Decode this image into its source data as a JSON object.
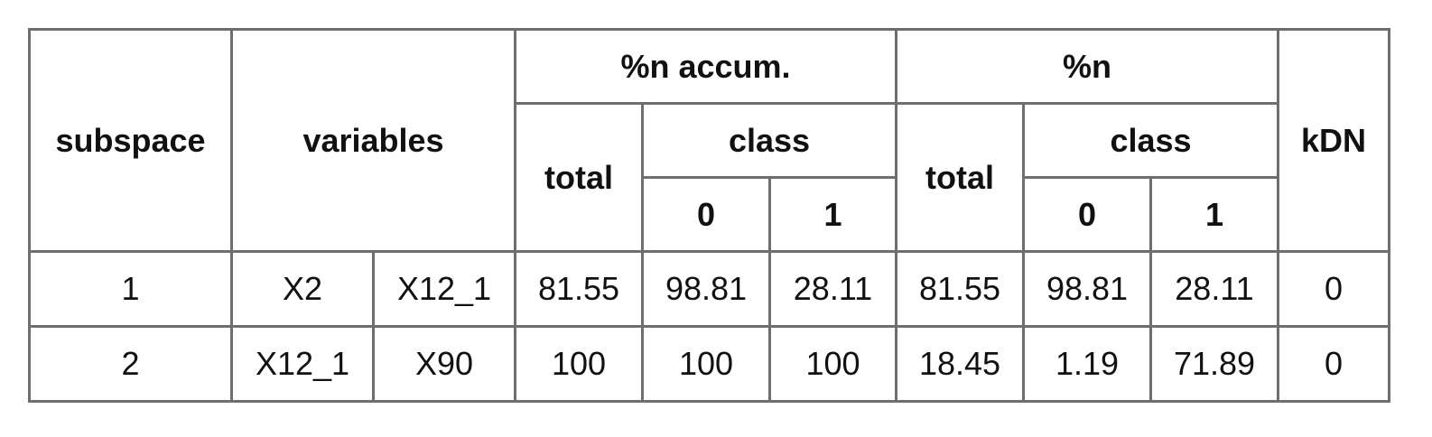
{
  "table": {
    "headers": {
      "subspace": "subspace",
      "variables": "variables",
      "pct_n_accum": "%n accum.",
      "pct_n": "%n",
      "kdn": "kDN",
      "total": "total",
      "class": "class",
      "class_0": "0",
      "class_1": "1"
    },
    "rows": [
      {
        "subspace": "1",
        "var_a": "X2",
        "var_b": "X12_1",
        "accum_total": "81.55",
        "accum_class0": "98.81",
        "accum_class1": "28.11",
        "pct_total": "81.55",
        "pct_class0": "98.81",
        "pct_class1": "28.11",
        "kdn": "0"
      },
      {
        "subspace": "2",
        "var_a": "X12_1",
        "var_b": "X90",
        "accum_total": "100",
        "accum_class0": "100",
        "accum_class1": "100",
        "pct_total": "18.45",
        "pct_class0": "1.19",
        "pct_class1": "71.89",
        "kdn": "0"
      }
    ]
  }
}
